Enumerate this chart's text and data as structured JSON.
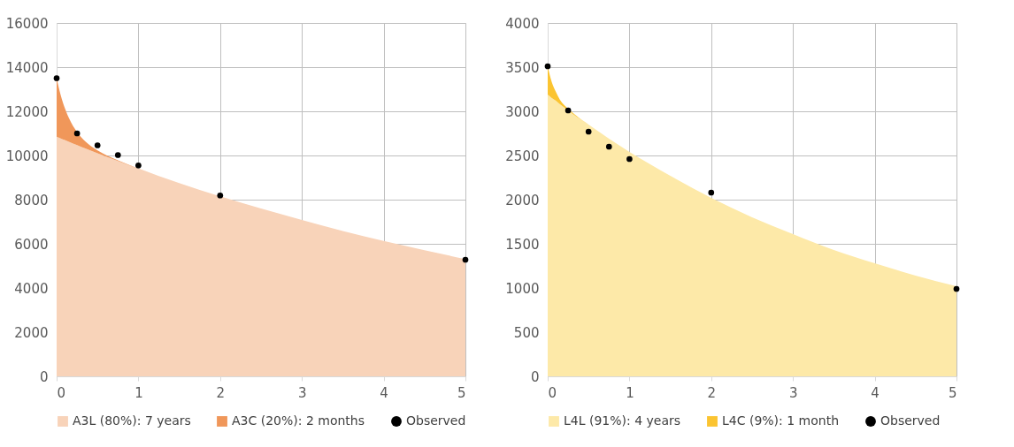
{
  "chart_data": [
    {
      "type": "area",
      "stacked": true,
      "grid": true,
      "legend": "bottom",
      "xlim": [
        0,
        5
      ],
      "xticks": [
        0,
        1,
        2,
        3,
        4,
        5
      ],
      "ylim": [
        0,
        16000
      ],
      "yticks": [
        0,
        2000,
        4000,
        6000,
        8000,
        10000,
        12000,
        14000,
        16000
      ],
      "x": [
        0,
        0.05,
        0.1,
        0.15,
        0.25,
        0.35,
        0.5,
        0.75,
        1,
        1.5,
        2,
        2.5,
        3,
        3.5,
        4,
        4.5,
        5
      ],
      "series": [
        {
          "name": "A3L (80%): 7 years",
          "color": "#f8d3b9",
          "values": [
            10850,
            10770,
            10700,
            10620,
            10470,
            10320,
            10100,
            9750,
            9400,
            8750,
            8150,
            7600,
            7080,
            6580,
            6130,
            5710,
            5310
          ]
        },
        {
          "name": "A3C (20%): 2 months",
          "color": "#f0975a",
          "values": [
            2650,
            1960,
            1450,
            1080,
            590,
            320,
            130,
            30,
            10,
            0,
            0,
            0,
            0,
            0,
            0,
            0,
            0
          ]
        },
        {
          "name": "Observed",
          "type": "scatter",
          "marker": "circle",
          "color": "#000000",
          "x": [
            0,
            0.25,
            0.5,
            0.75,
            1,
            2,
            5
          ],
          "values": [
            13500,
            11000,
            10460,
            10020,
            9550,
            8190,
            5280
          ]
        }
      ]
    },
    {
      "type": "area",
      "stacked": true,
      "grid": true,
      "legend": "bottom",
      "xlim": [
        0,
        5
      ],
      "xticks": [
        0,
        1,
        2,
        3,
        4,
        5
      ],
      "ylim": [
        0,
        4000
      ],
      "yticks": [
        0,
        500,
        1000,
        1500,
        2000,
        2500,
        3000,
        3500,
        4000
      ],
      "x": [
        0,
        0.05,
        0.1,
        0.15,
        0.25,
        0.35,
        0.5,
        0.75,
        1,
        1.5,
        2,
        2.5,
        3,
        3.5,
        4,
        4.5,
        5
      ],
      "series": [
        {
          "name": "L4L (91%): 4 years",
          "color": "#fde9a8",
          "values": [
            3190,
            3150,
            3120,
            3080,
            3010,
            2940,
            2850,
            2690,
            2540,
            2270,
            2020,
            1800,
            1610,
            1430,
            1280,
            1140,
            1020
          ]
        },
        {
          "name": "L4C (9%): 1 month",
          "color": "#fbc431",
          "values": [
            320,
            180,
            100,
            50,
            20,
            10,
            0,
            0,
            0,
            0,
            0,
            0,
            0,
            0,
            0,
            0,
            0
          ]
        },
        {
          "name": "Observed",
          "type": "scatter",
          "marker": "circle",
          "color": "#000000",
          "x": [
            0,
            0.25,
            0.5,
            0.75,
            1,
            2,
            5
          ],
          "values": [
            3510,
            3010,
            2770,
            2600,
            2460,
            2080,
            990
          ]
        }
      ]
    }
  ]
}
